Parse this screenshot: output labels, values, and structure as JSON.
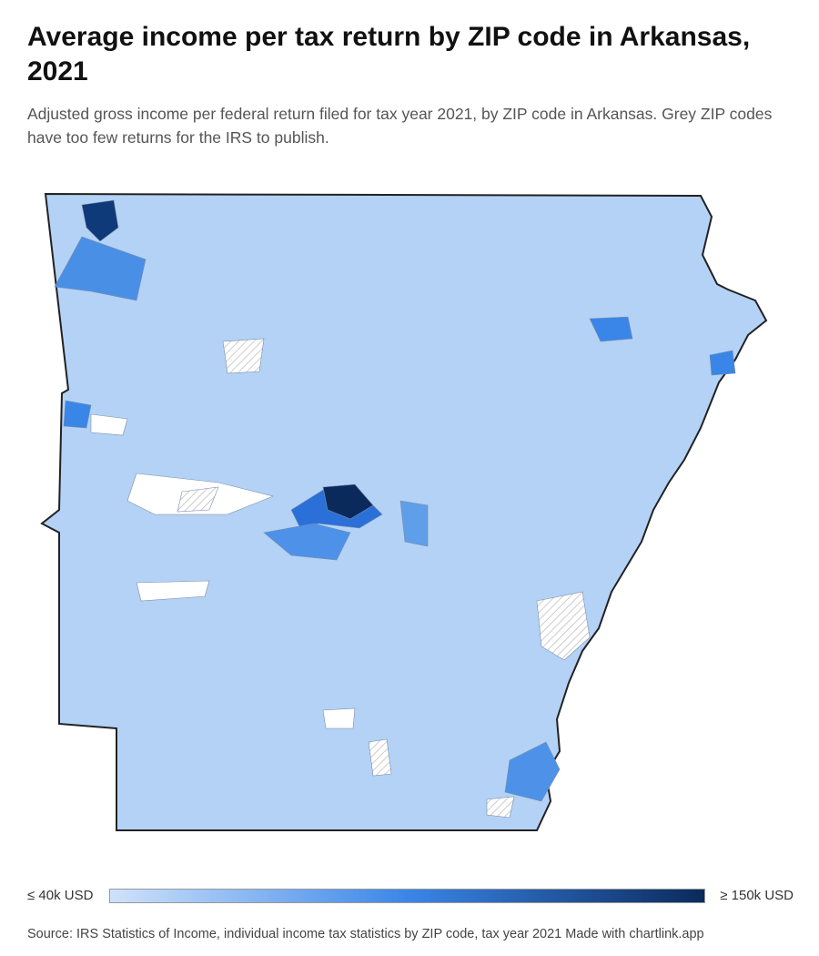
{
  "header": {
    "title": "Average income per tax return by ZIP code in Arkansas, 2021",
    "subtitle": "Adjusted gross income per federal return filed for tax year 2021, by ZIP code in Arkansas. Grey ZIP codes have too few returns for the IRS to publish."
  },
  "legend": {
    "min_label": "≤ 40k USD",
    "max_label": "≥ 150k USD",
    "colors": [
      "#cfe2fb",
      "#3a86e8",
      "#0b2a5c"
    ]
  },
  "footer": {
    "source": "Source: IRS Statistics of Income, individual income tax statistics by ZIP code, tax year 2021",
    "credit": "Made with chartlink.app"
  }
}
